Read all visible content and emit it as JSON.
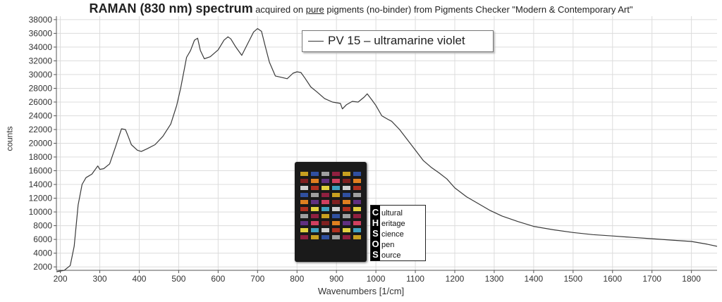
{
  "title": {
    "bold": "RAMAN (830 nm) spectrum",
    "part1": " acquired on ",
    "underlined": "pure",
    "part2": " pigments (no-binder) from Pigments Checker \"Modern & Contemporary Art\""
  },
  "legend": {
    "label": "PV 15 – ultramarine violet"
  },
  "logo": {
    "rows": [
      {
        "cap": "C",
        "rest": "ultural"
      },
      {
        "cap": "H",
        "rest": "eritage"
      },
      {
        "cap": "S",
        "rest": "cience"
      },
      {
        "cap": "O",
        "rest": "pen"
      },
      {
        "cap": "S",
        "rest": "ource"
      }
    ]
  },
  "colors": {
    "line": "#3a3a3a",
    "grid": "#dcdcdc"
  },
  "chart_data": {
    "type": "line",
    "title": "RAMAN (830 nm) spectrum acquired on pure pigments (no-binder) from Pigments Checker \"Modern & Contemporary Art\"",
    "xlabel": "Wavenumbers [1/cm]",
    "ylabel": "counts",
    "xlim": [
      190,
      1865
    ],
    "ylim": [
      1500,
      38500
    ],
    "grid": true,
    "legend_position": "top-center",
    "x_ticks": [
      200,
      300,
      400,
      500,
      600,
      700,
      800,
      900,
      1000,
      1100,
      1200,
      1300,
      1400,
      1500,
      1600,
      1700,
      1800
    ],
    "y_ticks": [
      2000,
      4000,
      6000,
      8000,
      10000,
      12000,
      14000,
      16000,
      18000,
      20000,
      22000,
      24000,
      26000,
      28000,
      30000,
      32000,
      34000,
      36000,
      38000
    ],
    "series": [
      {
        "name": "PV 15 – ultramarine violet",
        "x": [
          190,
          210,
          225,
          235,
          245,
          255,
          265,
          280,
          295,
          300,
          310,
          325,
          340,
          355,
          365,
          372,
          380,
          395,
          405,
          420,
          440,
          460,
          480,
          495,
          505,
          515,
          520,
          530,
          540,
          548,
          555,
          565,
          580,
          600,
          615,
          625,
          632,
          645,
          660,
          675,
          690,
          700,
          710,
          720,
          730,
          745,
          760,
          775,
          790,
          800,
          810,
          820,
          835,
          850,
          870,
          890,
          910,
          915,
          925,
          940,
          955,
          970,
          978,
          990,
          1000,
          1015,
          1030,
          1040,
          1060,
          1080,
          1100,
          1120,
          1140,
          1160,
          1180,
          1200,
          1230,
          1260,
          1290,
          1320,
          1360,
          1400,
          1450,
          1500,
          1550,
          1600,
          1650,
          1700,
          1750,
          1800,
          1840,
          1865
        ],
        "values": [
          1300,
          1500,
          2200,
          5000,
          11000,
          14000,
          15000,
          15500,
          16700,
          16200,
          16300,
          17000,
          19500,
          22100,
          22000,
          21000,
          19800,
          19000,
          18800,
          19200,
          19800,
          21000,
          22800,
          25500,
          28000,
          31000,
          32500,
          33500,
          35000,
          35300,
          33500,
          32300,
          32600,
          33600,
          35000,
          35500,
          35200,
          34000,
          32800,
          34500,
          36200,
          36700,
          36300,
          34000,
          31800,
          29800,
          29600,
          29400,
          30200,
          30400,
          30300,
          29500,
          28200,
          27500,
          26500,
          26000,
          25800,
          25000,
          25600,
          26100,
          26000,
          26700,
          27200,
          26300,
          25500,
          24000,
          23500,
          23200,
          22000,
          20500,
          19000,
          17500,
          16500,
          15700,
          14800,
          13500,
          12200,
          11200,
          10200,
          9400,
          8600,
          7900,
          7400,
          7000,
          6700,
          6500,
          6300,
          6100,
          5900,
          5700,
          5300,
          5000
        ]
      }
    ]
  }
}
